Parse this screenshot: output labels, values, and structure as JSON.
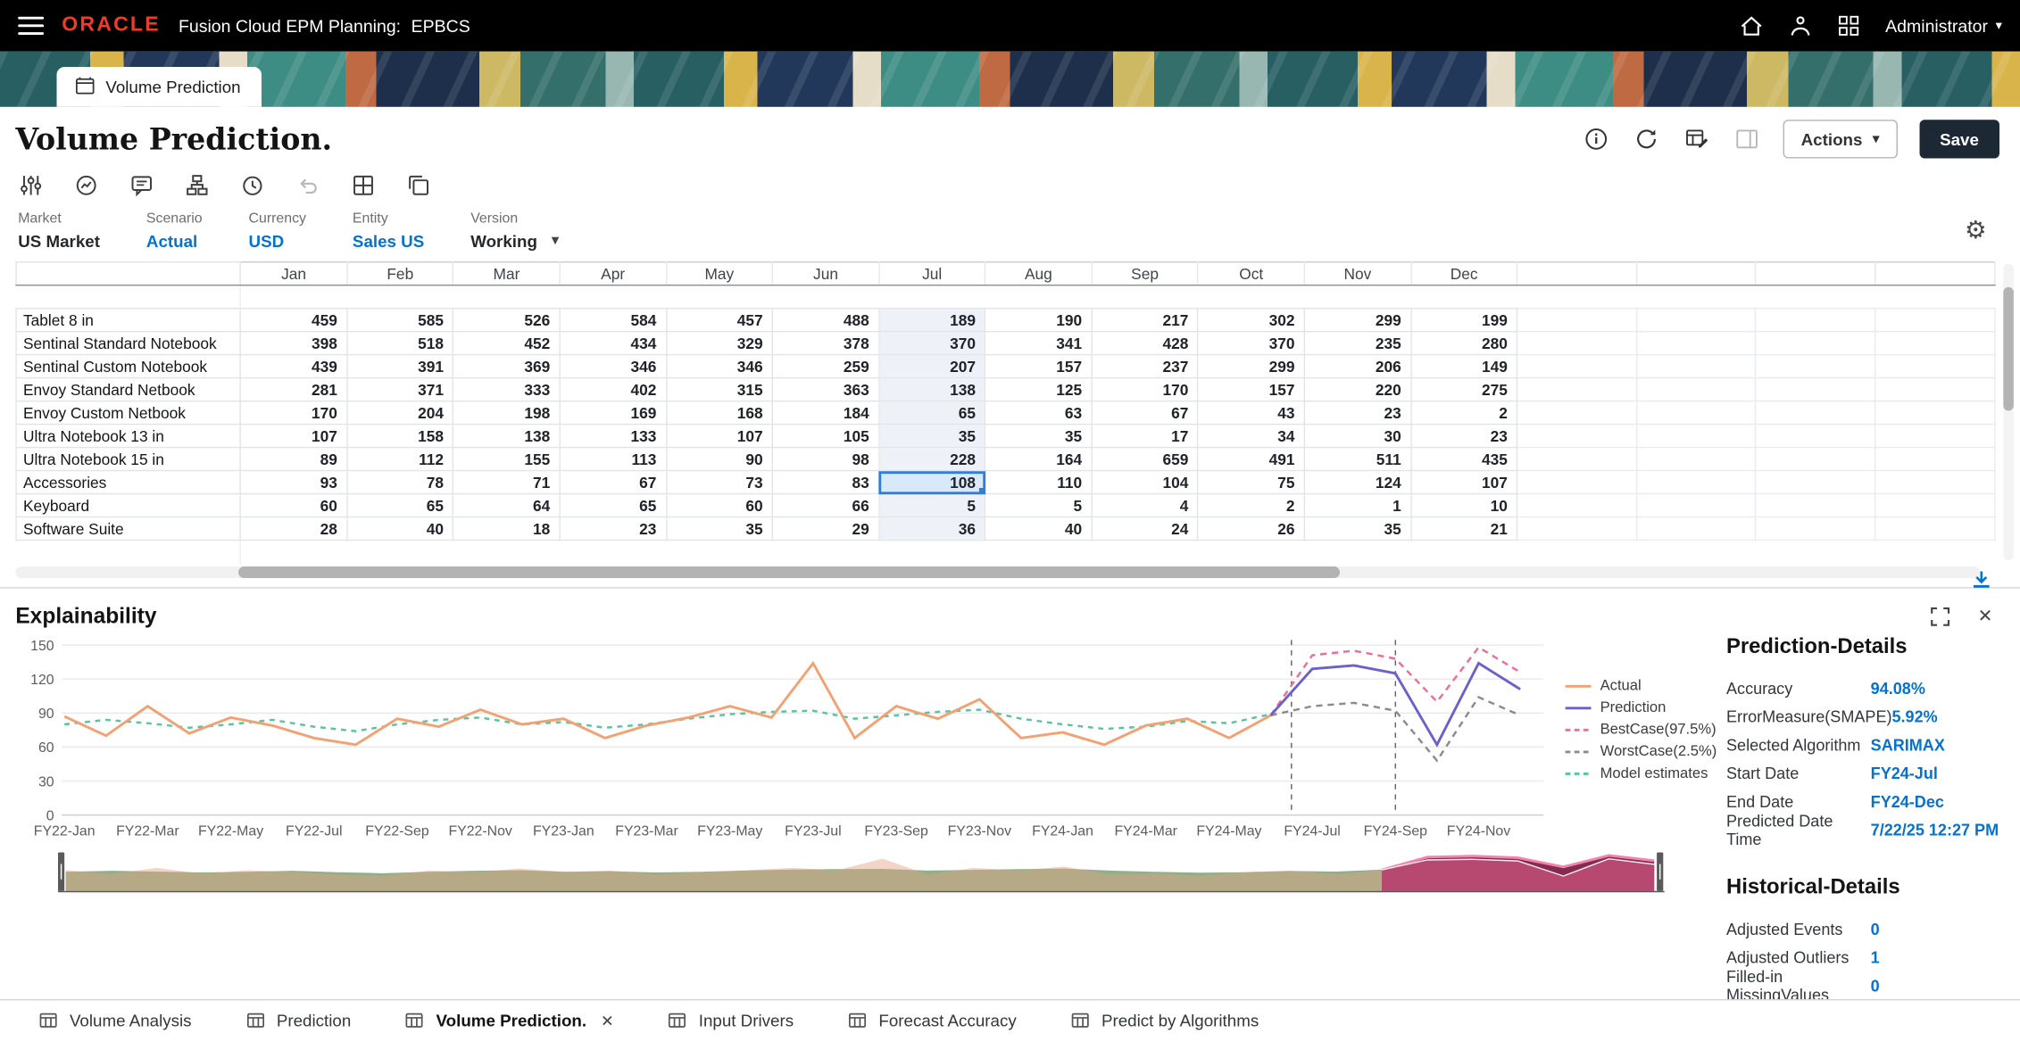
{
  "topbar": {
    "brand": "ORACLE",
    "product": "Fusion Cloud EPM Planning:",
    "env": "EPBCS",
    "user_menu": "Administrator"
  },
  "banner_tab": {
    "label": "Volume Prediction"
  },
  "page": {
    "title": "Volume Prediction.",
    "actions_button": "Actions",
    "save_button": "Save"
  },
  "pov": {
    "items": [
      {
        "label": "Market",
        "value": "US Market",
        "link": false,
        "dropdown": false
      },
      {
        "label": "Scenario",
        "value": "Actual",
        "link": true,
        "dropdown": false
      },
      {
        "label": "Currency",
        "value": "USD",
        "link": true,
        "dropdown": false
      },
      {
        "label": "Entity",
        "value": "Sales US",
        "link": true,
        "dropdown": false
      },
      {
        "label": "Version",
        "value": "Working",
        "link": false,
        "dropdown": true
      }
    ]
  },
  "grid": {
    "columns": [
      "Jan",
      "Feb",
      "Mar",
      "Apr",
      "May",
      "Jun",
      "Jul",
      "Aug",
      "Sep",
      "Oct",
      "Nov",
      "Dec"
    ],
    "highlight_column": "Jul",
    "selected_cell": {
      "row": "Accessories",
      "column": "Jul",
      "value": 108
    },
    "rows": [
      {
        "label": "Tablet 8 in",
        "values": [
          459,
          585,
          526,
          584,
          457,
          488,
          189,
          190,
          217,
          302,
          299,
          199
        ]
      },
      {
        "label": "Sentinal Standard Notebook",
        "values": [
          398,
          518,
          452,
          434,
          329,
          378,
          370,
          341,
          428,
          370,
          235,
          280
        ]
      },
      {
        "label": "Sentinal Custom Notebook",
        "values": [
          439,
          391,
          369,
          346,
          346,
          259,
          207,
          157,
          237,
          299,
          206,
          149
        ]
      },
      {
        "label": "Envoy Standard Netbook",
        "values": [
          281,
          371,
          333,
          402,
          315,
          363,
          138,
          125,
          170,
          157,
          220,
          275
        ]
      },
      {
        "label": "Envoy Custom Netbook",
        "values": [
          170,
          204,
          198,
          169,
          168,
          184,
          65,
          63,
          67,
          43,
          23,
          2
        ]
      },
      {
        "label": "Ultra Notebook 13 in",
        "values": [
          107,
          158,
          138,
          133,
          107,
          105,
          35,
          35,
          17,
          34,
          30,
          23
        ]
      },
      {
        "label": "Ultra Notebook 15 in",
        "values": [
          89,
          112,
          155,
          113,
          90,
          98,
          228,
          164,
          659,
          491,
          511,
          435
        ]
      },
      {
        "label": "Accessories",
        "values": [
          93,
          78,
          71,
          67,
          73,
          83,
          108,
          110,
          104,
          75,
          124,
          107
        ]
      },
      {
        "label": "Keyboard",
        "values": [
          60,
          65,
          64,
          65,
          60,
          66,
          5,
          5,
          4,
          2,
          1,
          10
        ]
      },
      {
        "label": "Software Suite",
        "values": [
          28,
          40,
          18,
          23,
          35,
          29,
          36,
          40,
          24,
          26,
          35,
          21
        ]
      }
    ]
  },
  "explainability": {
    "title": "Explainability"
  },
  "details": {
    "prediction_title": "Prediction-Details",
    "prediction_items": [
      {
        "label": "Accuracy",
        "value": "94.08%"
      },
      {
        "label": "ErrorMeasure(SMAPE)",
        "value": "5.92%"
      },
      {
        "label": "Selected Algorithm",
        "value": "SARIMAX"
      },
      {
        "label": "Start Date",
        "value": "FY24-Jul"
      },
      {
        "label": "End Date",
        "value": "FY24-Dec"
      },
      {
        "label": "Predicted Date Time",
        "value": "7/22/25 12:27 PM"
      }
    ],
    "historical_title": "Historical-Details",
    "historical_items": [
      {
        "label": "Adjusted Events",
        "value": "0"
      },
      {
        "label": "Adjusted Outliers",
        "value": "1"
      },
      {
        "label": "Filled-in MissingValues",
        "value": "0"
      }
    ]
  },
  "bottom_tabs": [
    {
      "label": "Volume Analysis",
      "active": false,
      "closable": false
    },
    {
      "label": "Prediction",
      "active": false,
      "closable": false
    },
    {
      "label": "Volume Prediction.",
      "active": true,
      "closable": true
    },
    {
      "label": "Input Drivers",
      "active": false,
      "closable": false
    },
    {
      "label": "Forecast Accuracy",
      "active": false,
      "closable": false
    },
    {
      "label": "Predict by Algorithms",
      "active": false,
      "closable": false
    }
  ],
  "chart_data": {
    "type": "line",
    "title": "Explainability",
    "x": [
      "FY22-Jan",
      "FY22-Feb",
      "FY22-Mar",
      "FY22-Apr",
      "FY22-May",
      "FY22-Jun",
      "FY22-Jul",
      "FY22-Aug",
      "FY22-Sep",
      "FY22-Oct",
      "FY22-Nov",
      "FY22-Dec",
      "FY23-Jan",
      "FY23-Feb",
      "FY23-Mar",
      "FY23-Apr",
      "FY23-May",
      "FY23-Jun",
      "FY23-Jul",
      "FY23-Aug",
      "FY23-Sep",
      "FY23-Oct",
      "FY23-Nov",
      "FY23-Dec",
      "FY24-Jan",
      "FY24-Feb",
      "FY24-Mar",
      "FY24-Apr",
      "FY24-May",
      "FY24-Jun",
      "FY24-Jul",
      "FY24-Aug",
      "FY24-Sep",
      "FY24-Oct",
      "FY24-Nov",
      "FY24-Dec"
    ],
    "tick_every": 2,
    "ylim": [
      0,
      150
    ],
    "yticks": [
      0,
      30,
      60,
      90,
      120,
      150
    ],
    "prediction_start": "FY24-Jul",
    "markers": [
      29.5,
      32
    ],
    "legend_position": "right",
    "series": [
      {
        "name": "Actual",
        "color": "#F2A173",
        "dash": null,
        "values": [
          87,
          70,
          96,
          72,
          86,
          79,
          68,
          62,
          85,
          78,
          93,
          80,
          85,
          68,
          79,
          86,
          96,
          86,
          134,
          68,
          96,
          85,
          102,
          68,
          73,
          62,
          79,
          85,
          68,
          88,
          null,
          null,
          null,
          null,
          null,
          null
        ]
      },
      {
        "name": "Prediction",
        "color": "#6A61C9",
        "dash": null,
        "values": [
          null,
          null,
          null,
          null,
          null,
          null,
          null,
          null,
          null,
          null,
          null,
          null,
          null,
          null,
          null,
          null,
          null,
          null,
          null,
          null,
          null,
          null,
          null,
          null,
          null,
          null,
          null,
          null,
          null,
          88,
          129,
          132,
          125,
          62,
          134,
          111
        ]
      },
      {
        "name": "BestCase(97.5%)",
        "color": "#EE6E96",
        "dash": "5 4",
        "values": [
          null,
          null,
          null,
          null,
          null,
          null,
          null,
          null,
          null,
          null,
          null,
          null,
          null,
          null,
          null,
          null,
          null,
          null,
          null,
          null,
          null,
          null,
          null,
          null,
          null,
          null,
          null,
          null,
          null,
          88,
          141,
          145,
          138,
          100,
          148,
          126
        ]
      },
      {
        "name": "WorstCase(2.5%)",
        "color": "#8C8C8C",
        "dash": "5 4",
        "values": [
          null,
          null,
          null,
          null,
          null,
          null,
          null,
          null,
          null,
          null,
          null,
          null,
          null,
          null,
          null,
          null,
          null,
          null,
          null,
          null,
          null,
          null,
          null,
          null,
          null,
          null,
          null,
          null,
          null,
          88,
          96,
          99,
          92,
          48,
          104,
          88
        ]
      },
      {
        "name": "Model estimates",
        "color": "#5BC3A0",
        "dash": "4 4",
        "values": [
          80,
          84,
          81,
          77,
          80,
          84,
          78,
          74,
          80,
          84,
          86,
          80,
          82,
          77,
          80,
          85,
          89,
          91,
          92,
          85,
          88,
          91,
          93,
          85,
          80,
          76,
          78,
          83,
          81,
          89,
          null,
          null,
          null,
          null,
          null,
          null
        ]
      }
    ]
  }
}
